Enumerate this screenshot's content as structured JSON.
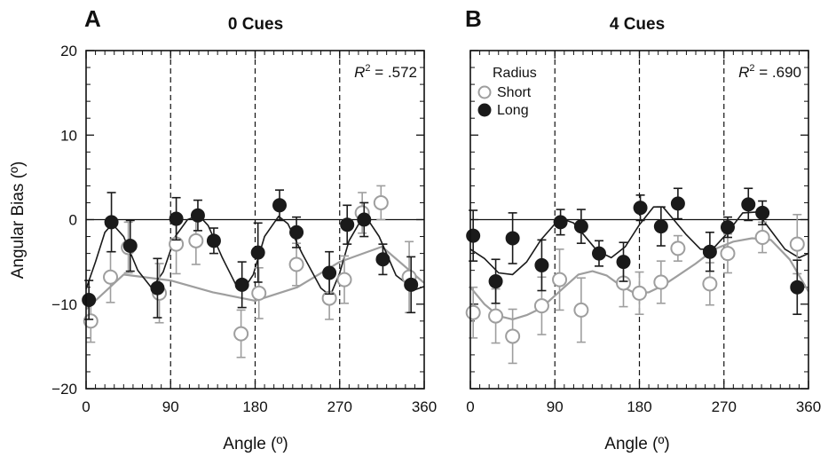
{
  "colors": {
    "short": "#9e9e9e",
    "long": "#1a1a1a",
    "axis": "#111111"
  },
  "y_axis_label": "Angular Bias (º)",
  "chart_data": [
    {
      "type": "scatter",
      "panel_letter": "A",
      "title": "0 Cues",
      "xlabel": "Angle (º)",
      "ylabel": "Angular Bias (º)",
      "xlim": [
        0,
        360
      ],
      "ylim": [
        -20,
        20
      ],
      "xticks": [
        "0",
        "90",
        "180",
        "270",
        "360"
      ],
      "yticks": [
        "20",
        "10",
        "0",
        "−10",
        "−20"
      ],
      "vlines": [
        90,
        180,
        270
      ],
      "hline": 0,
      "r2_prefix": "R",
      "r2_value": "= .572",
      "legend": null,
      "series": [
        {
          "name": "Short",
          "marker": "open",
          "points": [
            {
              "x": 5,
              "y": -12,
              "err": 2.5
            },
            {
              "x": 26,
              "y": -6.8,
              "err": 3
            },
            {
              "x": 45,
              "y": -3.3,
              "err": 3
            },
            {
              "x": 78,
              "y": -8.7,
              "err": 3.5
            },
            {
              "x": 96,
              "y": -2.9,
              "err": 3.5
            },
            {
              "x": 117,
              "y": -2.5,
              "err": 2.8
            },
            {
              "x": 165,
              "y": -13.5,
              "err": 2.8
            },
            {
              "x": 184,
              "y": -8.7,
              "err": 3
            },
            {
              "x": 224,
              "y": -5.3,
              "err": 2.5
            },
            {
              "x": 259,
              "y": -9.3,
              "err": 2.5
            },
            {
              "x": 275,
              "y": -7.1,
              "err": 2.8
            },
            {
              "x": 294,
              "y": 0.8,
              "err": 2.4
            },
            {
              "x": 314,
              "y": 2,
              "err": 2
            },
            {
              "x": 344,
              "y": -6.8,
              "err": 4.2
            }
          ],
          "fit": [
            [
              0,
              -10.6
            ],
            [
              40,
              -6.5
            ],
            [
              90,
              -7.2
            ],
            [
              135,
              -8.6
            ],
            [
              180,
              -9.6
            ],
            [
              225,
              -8
            ],
            [
              270,
              -5
            ],
            [
              315,
              -3.2
            ],
            [
              360,
              -7.5
            ]
          ]
        },
        {
          "name": "Long",
          "marker": "filled",
          "points": [
            {
              "x": 3,
              "y": -9.5,
              "err": 2.3
            },
            {
              "x": 27,
              "y": -0.3,
              "err": 3.5
            },
            {
              "x": 47,
              "y": -3.1,
              "err": 3
            },
            {
              "x": 76,
              "y": -8.1,
              "err": 3.5
            },
            {
              "x": 96,
              "y": 0.1,
              "err": 2.5
            },
            {
              "x": 119,
              "y": 0.5,
              "err": 1.8
            },
            {
              "x": 136,
              "y": -2.5,
              "err": 1.5
            },
            {
              "x": 166,
              "y": -7.7,
              "err": 2.7
            },
            {
              "x": 183,
              "y": -3.9,
              "err": 3.5
            },
            {
              "x": 206,
              "y": 1.7,
              "err": 1.8
            },
            {
              "x": 224,
              "y": -1.5,
              "err": 1.8
            },
            {
              "x": 259,
              "y": -6.3,
              "err": 2.5
            },
            {
              "x": 278,
              "y": -0.6,
              "err": 2.3
            },
            {
              "x": 296,
              "y": 0,
              "err": 2
            },
            {
              "x": 316,
              "y": -4.7,
              "err": 1.8
            },
            {
              "x": 346,
              "y": -7.7,
              "err": 3.3
            }
          ],
          "fit": [
            [
              0,
              -8.2
            ],
            [
              10,
              -5
            ],
            [
              20,
              -1.5
            ],
            [
              28,
              -0.5
            ],
            [
              40,
              -2
            ],
            [
              55,
              -6
            ],
            [
              70,
              -8.1
            ],
            [
              82,
              -6.2
            ],
            [
              95,
              -2
            ],
            [
              108,
              0
            ],
            [
              120,
              0.5
            ],
            [
              130,
              -0.7
            ],
            [
              145,
              -4.5
            ],
            [
              160,
              -7.8
            ],
            [
              168,
              -8.2
            ],
            [
              178,
              -6.5
            ],
            [
              190,
              -2
            ],
            [
              205,
              0.4
            ],
            [
              215,
              -0.5
            ],
            [
              230,
              -4
            ],
            [
              250,
              -8.1
            ],
            [
              260,
              -9
            ],
            [
              270,
              -6.3
            ],
            [
              280,
              -2.5
            ],
            [
              292,
              -0.2
            ],
            [
              300,
              0
            ],
            [
              312,
              -2
            ],
            [
              330,
              -6.6
            ],
            [
              350,
              -8.3
            ],
            [
              360,
              -7.9
            ]
          ]
        }
      ]
    },
    {
      "type": "scatter",
      "panel_letter": "B",
      "title": "4 Cues",
      "xlabel": "Angle (º)",
      "ylabel": "",
      "xlim": [
        0,
        360
      ],
      "ylim": [
        -20,
        20
      ],
      "xticks": [
        "0",
        "90",
        "180",
        "270",
        "360"
      ],
      "yticks": [],
      "vlines": [
        90,
        180,
        270
      ],
      "hline": 0,
      "r2_prefix": "R",
      "r2_value": "= .690",
      "legend": {
        "title": "Radius",
        "items": [
          "Short",
          "Long"
        ],
        "placement": "top-left"
      },
      "series": [
        {
          "name": "Short",
          "marker": "open",
          "points": [
            {
              "x": 3,
              "y": -11,
              "err": 3
            },
            {
              "x": 27,
              "y": -11.4,
              "err": 3.2
            },
            {
              "x": 45,
              "y": -13.8,
              "err": 3.2
            },
            {
              "x": 76,
              "y": -10.2,
              "err": 3.4
            },
            {
              "x": 95,
              "y": -7.1,
              "err": 3.6
            },
            {
              "x": 118,
              "y": -10.7,
              "err": 3.8
            },
            {
              "x": 163,
              "y": -7.5,
              "err": 2.8
            },
            {
              "x": 180,
              "y": -8.7,
              "err": 2.5
            },
            {
              "x": 203,
              "y": -7.4,
              "err": 2.5
            },
            {
              "x": 221,
              "y": -3.4,
              "err": 1.5
            },
            {
              "x": 255,
              "y": -7.6,
              "err": 2.5
            },
            {
              "x": 274,
              "y": -4,
              "err": 2.3
            },
            {
              "x": 311,
              "y": -2.1,
              "err": 1.8
            },
            {
              "x": 348,
              "y": -2.9,
              "err": 3.5
            }
          ],
          "fit": [
            [
              0,
              -8
            ],
            [
              15,
              -10
            ],
            [
              30,
              -11.4
            ],
            [
              45,
              -11.8
            ],
            [
              60,
              -11.3
            ],
            [
              75,
              -10.5
            ],
            [
              90,
              -9
            ],
            [
              100,
              -8
            ],
            [
              115,
              -6.5
            ],
            [
              130,
              -6.1
            ],
            [
              145,
              -6.6
            ],
            [
              160,
              -7.8
            ],
            [
              175,
              -8.7
            ],
            [
              190,
              -8.6
            ],
            [
              205,
              -7.8
            ],
            [
              220,
              -6.7
            ],
            [
              240,
              -5.2
            ],
            [
              260,
              -3.5
            ],
            [
              280,
              -2.6
            ],
            [
              300,
              -2.2
            ],
            [
              320,
              -2.4
            ],
            [
              340,
              -4.7
            ],
            [
              360,
              -8.5
            ]
          ]
        },
        {
          "name": "Long",
          "marker": "filled",
          "points": [
            {
              "x": 3,
              "y": -1.9,
              "err": 3
            },
            {
              "x": 27,
              "y": -7.3,
              "err": 2.6
            },
            {
              "x": 45,
              "y": -2.2,
              "err": 3
            },
            {
              "x": 76,
              "y": -5.4,
              "err": 3
            },
            {
              "x": 96,
              "y": -0.3,
              "err": 1.5
            },
            {
              "x": 118,
              "y": -0.8,
              "err": 2
            },
            {
              "x": 137,
              "y": -4,
              "err": 1.5
            },
            {
              "x": 163,
              "y": -5,
              "err": 2.3
            },
            {
              "x": 181,
              "y": 1.4,
              "err": 1.5
            },
            {
              "x": 203,
              "y": -0.8,
              "err": 2.3
            },
            {
              "x": 221,
              "y": 1.9,
              "err": 1.8
            },
            {
              "x": 255,
              "y": -3.8,
              "err": 2.3
            },
            {
              "x": 274,
              "y": -0.9,
              "err": 1.2
            },
            {
              "x": 296,
              "y": 1.8,
              "err": 1.9
            },
            {
              "x": 311,
              "y": 0.8,
              "err": 1.4
            },
            {
              "x": 348,
              "y": -8,
              "err": 3.2
            }
          ],
          "fit": [
            [
              0,
              -3.5
            ],
            [
              15,
              -4.6
            ],
            [
              30,
              -6.3
            ],
            [
              45,
              -6.5
            ],
            [
              60,
              -5
            ],
            [
              75,
              -2.4
            ],
            [
              90,
              -0.5
            ],
            [
              100,
              0
            ],
            [
              110,
              -0.4
            ],
            [
              120,
              -1.7
            ],
            [
              135,
              -3.7
            ],
            [
              150,
              -4.5
            ],
            [
              165,
              -3.2
            ],
            [
              180,
              -0.6
            ],
            [
              195,
              1.5
            ],
            [
              205,
              1.5
            ],
            [
              215,
              0.2
            ],
            [
              230,
              -1.8
            ],
            [
              245,
              -3.5
            ],
            [
              258,
              -3.5
            ],
            [
              272,
              -1.8
            ],
            [
              290,
              0.8
            ],
            [
              305,
              0.9
            ],
            [
              320,
              -1.3
            ],
            [
              335,
              -3.5
            ],
            [
              350,
              -4.5
            ],
            [
              360,
              -4
            ]
          ]
        }
      ]
    }
  ]
}
